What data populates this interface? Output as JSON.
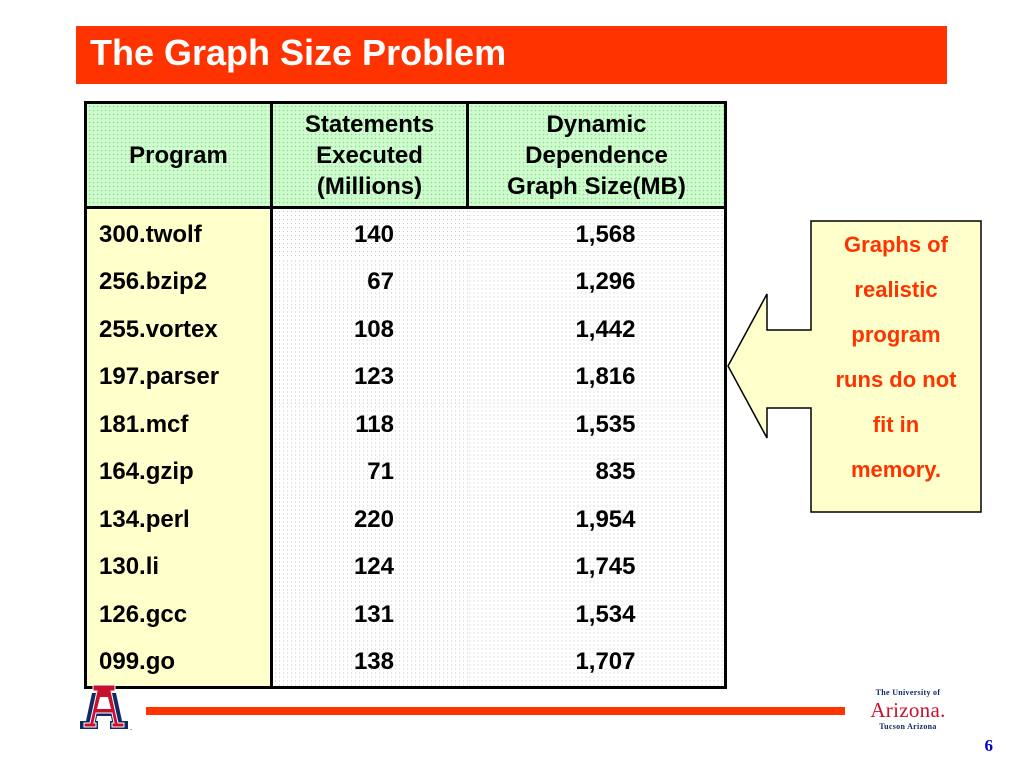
{
  "slide": {
    "title": "The Graph Size Problem",
    "page_number": "6"
  },
  "table": {
    "headers": {
      "program": "Program",
      "statements": [
        "Statements",
        "Executed",
        "(Millions)"
      ],
      "graph_size": [
        "Dynamic",
        "Dependence",
        "Graph Size(MB)"
      ]
    },
    "rows": [
      {
        "program": "300.twolf",
        "statements": "140",
        "graph_size": "1,568"
      },
      {
        "program": "256.bzip2",
        "statements": "67",
        "graph_size": "1,296"
      },
      {
        "program": "255.vortex",
        "statements": "108",
        "graph_size": "1,442"
      },
      {
        "program": "197.parser",
        "statements": "123",
        "graph_size": "1,816"
      },
      {
        "program": "181.mcf",
        "statements": "118",
        "graph_size": "1,535"
      },
      {
        "program": "164.gzip",
        "statements": "71",
        "graph_size": "835"
      },
      {
        "program": "134.perl",
        "statements": "220",
        "graph_size": "1,954"
      },
      {
        "program": "130.li",
        "statements": "124",
        "graph_size": "1,745"
      },
      {
        "program": "126.gcc",
        "statements": "131",
        "graph_size": "1,534"
      },
      {
        "program": "099.go",
        "statements": "138",
        "graph_size": "1,707"
      }
    ]
  },
  "callout": {
    "lines": [
      "Graphs of",
      "realistic",
      "program",
      "runs do not",
      "fit in",
      "memory."
    ]
  },
  "footer": {
    "university_top": "The University of",
    "university_main": "Arizona.",
    "university_bottom": "Tucson Arizona",
    "logo_mark": "A"
  },
  "colors": {
    "title_bar": "#fe3300",
    "header_fill": "#ccffcc",
    "program_col_fill": "#ffffcc",
    "callout_fill": "#ffffcc",
    "callout_text": "#ff3300",
    "footer_rule": "#ff3300",
    "page_number": "#0000cc"
  },
  "icons": {
    "callout_arrow": "left-pointing-arrow",
    "logo": "block-a-logo"
  }
}
